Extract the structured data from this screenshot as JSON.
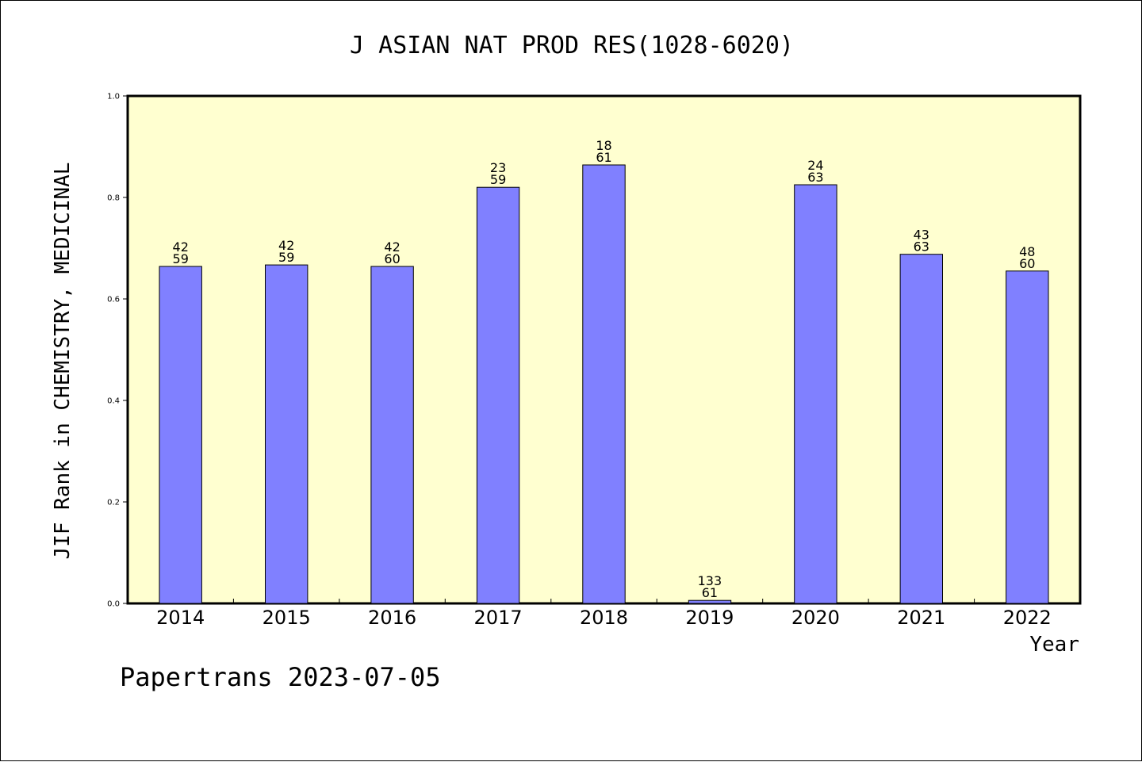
{
  "chart_data": {
    "type": "bar",
    "title": "J ASIAN NAT PROD RES(1028-6020)",
    "xlabel": "Year",
    "ylabel": "JIF Rank in CHEMISTRY, MEDICINAL",
    "footer": "Papertrans 2023-07-05",
    "ylim": [
      0,
      1
    ],
    "yticks": [
      "0.0",
      "0.2",
      "0.4",
      "0.6",
      "0.8",
      "1.0"
    ],
    "ytick_values": [
      0,
      0.2,
      0.4,
      0.6,
      0.8,
      1.0
    ],
    "categories": [
      "2014",
      "2015",
      "2016",
      "2017",
      "2018",
      "2019",
      "2020",
      "2021",
      "2022"
    ],
    "values": [
      0.664,
      0.667,
      0.664,
      0.82,
      0.864,
      0.006,
      0.825,
      0.688,
      0.655
    ],
    "label_top": [
      "42",
      "42",
      "42",
      "23",
      "18",
      "133",
      "24",
      "43",
      "48"
    ],
    "label_bottom": [
      "59",
      "59",
      "60",
      "59",
      "61",
      "61",
      "63",
      "63",
      "60"
    ],
    "grid": false,
    "colors": {
      "bar": "#8080ff",
      "plot_bg": "#ffffd0",
      "frame": "#000000"
    }
  }
}
